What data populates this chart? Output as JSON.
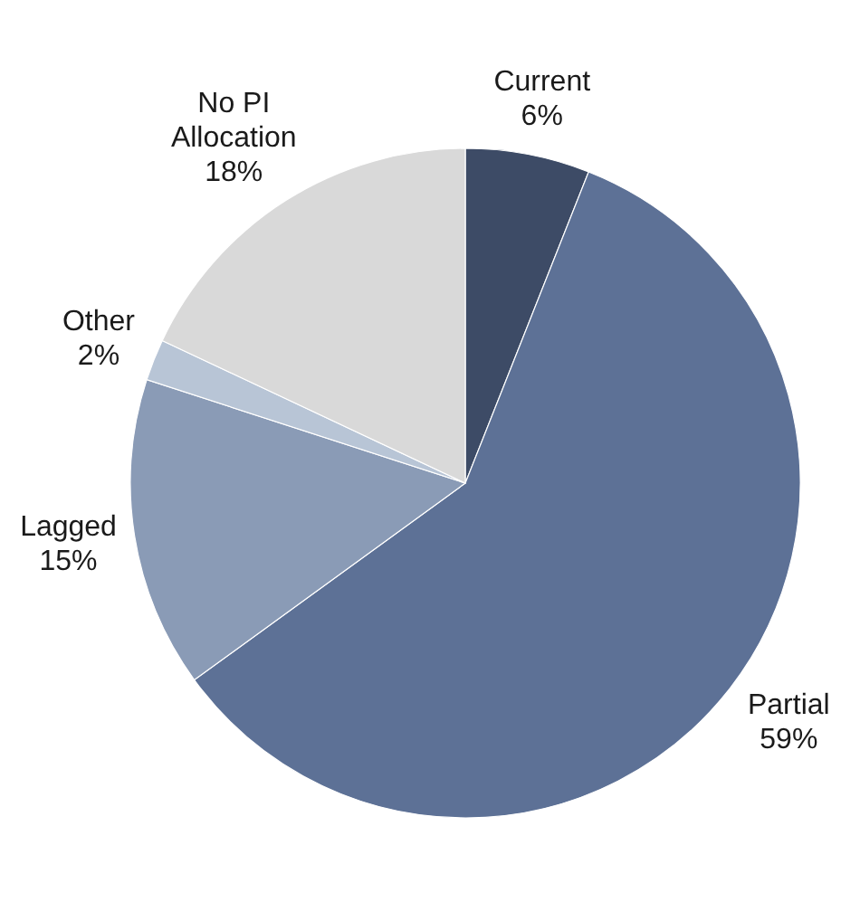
{
  "chart_data": {
    "type": "pie",
    "categories": [
      "Current",
      "Partial",
      "Lagged",
      "Other",
      "No PI Allocation"
    ],
    "values": [
      6,
      59,
      15,
      2,
      18
    ],
    "colors": [
      "#3d4b66",
      "#5d7196",
      "#8a9bb6",
      "#b8c5d6",
      "#d9d9d9"
    ],
    "value_labels": [
      "6%",
      "59%",
      "15%",
      "2%",
      "18%"
    ]
  }
}
